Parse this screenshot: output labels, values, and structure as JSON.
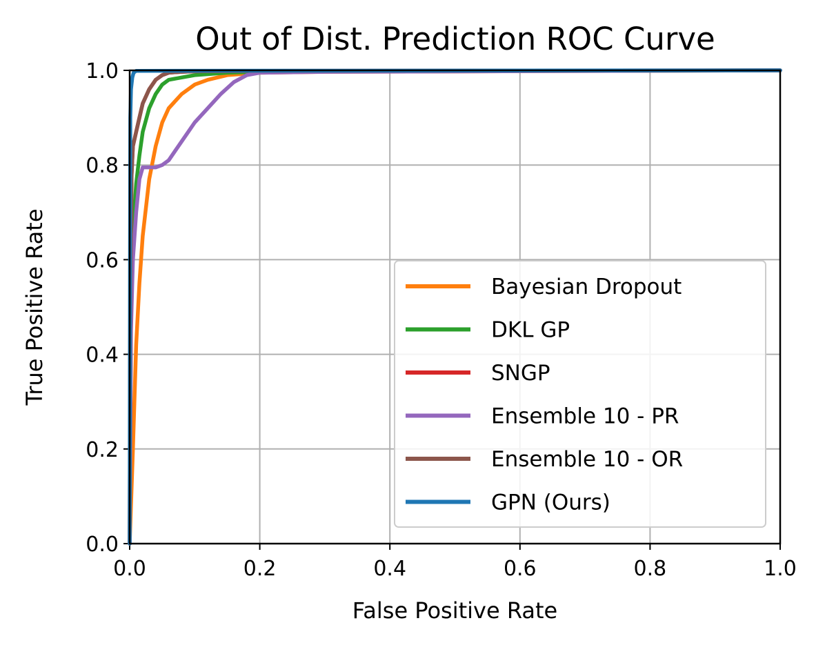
{
  "chart_data": {
    "type": "line",
    "title": "Out of Dist. Prediction ROC Curve",
    "xlabel": "False Positive Rate",
    "ylabel": "True Positive Rate",
    "xlim": [
      0,
      1
    ],
    "ylim": [
      0,
      1
    ],
    "xticks": [
      "0.0",
      "0.2",
      "0.4",
      "0.6",
      "0.8",
      "1.0"
    ],
    "yticks": [
      "0.0",
      "0.2",
      "0.4",
      "0.6",
      "0.8",
      "1.0"
    ],
    "grid": true,
    "legend_position": "lower-right",
    "series": [
      {
        "name": "Bayesian Dropout",
        "color": "#ff7f0e",
        "x": [
          0.0,
          0.005,
          0.01,
          0.015,
          0.02,
          0.03,
          0.04,
          0.05,
          0.06,
          0.08,
          0.1,
          0.12,
          0.15,
          0.2,
          0.3,
          1.0
        ],
        "y": [
          0.0,
          0.2,
          0.42,
          0.55,
          0.65,
          0.77,
          0.84,
          0.89,
          0.92,
          0.95,
          0.97,
          0.98,
          0.99,
          0.995,
          0.997,
          1.0
        ]
      },
      {
        "name": "DKL GP",
        "color": "#2ca02c",
        "x": [
          0.0,
          0.002,
          0.005,
          0.01,
          0.015,
          0.02,
          0.03,
          0.04,
          0.05,
          0.06,
          0.08,
          0.1,
          0.15,
          0.2,
          0.3,
          1.0
        ],
        "y": [
          0.0,
          0.5,
          0.66,
          0.76,
          0.82,
          0.87,
          0.92,
          0.95,
          0.97,
          0.98,
          0.985,
          0.99,
          0.995,
          0.997,
          0.998,
          1.0
        ]
      },
      {
        "name": "SNGP",
        "color": "#d62728",
        "x": [
          0.0,
          0.001,
          0.003,
          0.005,
          0.01,
          0.015,
          0.02,
          0.03,
          0.04,
          0.05,
          0.06,
          0.08,
          0.1,
          0.2,
          1.0
        ],
        "y": [
          0.0,
          0.55,
          0.78,
          0.84,
          0.87,
          0.9,
          0.93,
          0.96,
          0.98,
          0.99,
          0.995,
          0.997,
          0.998,
          0.999,
          1.0
        ]
      },
      {
        "name": "Ensemble 10 - PR",
        "color": "#9467bd",
        "x": [
          0.0,
          0.002,
          0.005,
          0.01,
          0.015,
          0.02,
          0.025,
          0.03,
          0.04,
          0.05,
          0.06,
          0.07,
          0.08,
          0.09,
          0.1,
          0.12,
          0.14,
          0.16,
          0.18,
          0.2,
          0.3,
          1.0
        ],
        "y": [
          0.0,
          0.45,
          0.6,
          0.7,
          0.77,
          0.795,
          0.795,
          0.795,
          0.795,
          0.8,
          0.81,
          0.83,
          0.85,
          0.87,
          0.89,
          0.92,
          0.95,
          0.975,
          0.99,
          0.995,
          0.997,
          1.0
        ]
      },
      {
        "name": "Ensemble 10 - OR",
        "color": "#8c564b",
        "x": [
          0.0,
          0.001,
          0.003,
          0.005,
          0.01,
          0.015,
          0.02,
          0.03,
          0.04,
          0.05,
          0.06,
          0.08,
          0.1,
          0.2,
          1.0
        ],
        "y": [
          0.0,
          0.55,
          0.78,
          0.84,
          0.87,
          0.9,
          0.93,
          0.96,
          0.98,
          0.99,
          0.995,
          0.997,
          0.998,
          0.999,
          1.0
        ]
      },
      {
        "name": "GPN (Ours)",
        "color": "#1f77b4",
        "x": [
          0.0,
          0.0005,
          0.001,
          0.002,
          0.004,
          0.006,
          0.01,
          1.0
        ],
        "y": [
          0.0,
          0.6,
          0.9,
          0.96,
          0.985,
          0.995,
          0.999,
          1.0
        ]
      }
    ]
  }
}
